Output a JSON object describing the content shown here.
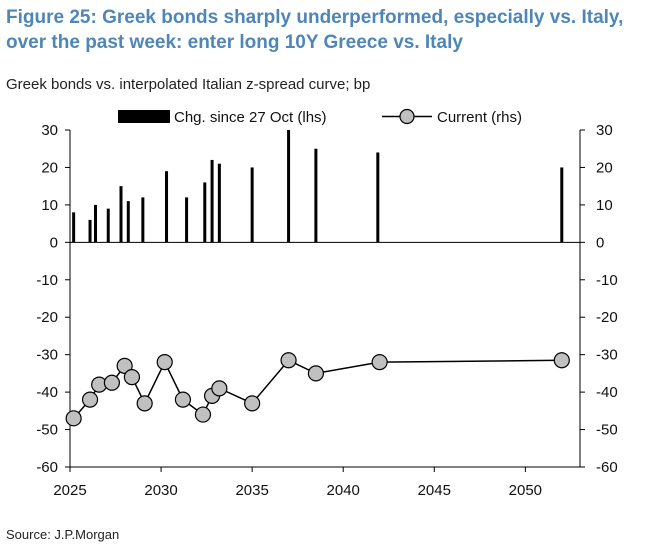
{
  "header": {
    "title": "Figure 25: Greek bonds sharply underperformed, especially vs. Italy, over the past week: enter long 10Y Greece vs. Italy",
    "subtitle": "Greek bonds vs. interpolated Italian z-spread curve; bp"
  },
  "footer": {
    "source": "Source: J.P.Morgan"
  },
  "colors": {
    "title": "#4f86b8",
    "bars": "#000000",
    "marker_fill": "#c0c0c0",
    "line": "#000000"
  },
  "chart_data": {
    "type": "bar+line",
    "title": "",
    "x_ticks": [
      2025,
      2030,
      2035,
      2040,
      2045,
      2050
    ],
    "xlim": [
      2025,
      2053
    ],
    "ylim_left": [
      -60,
      30
    ],
    "ylim_right": [
      -60,
      30
    ],
    "y_ticks": [
      30,
      20,
      10,
      0,
      -10,
      -20,
      -30,
      -40,
      -50,
      -60
    ],
    "legend": {
      "placement": "top",
      "entries": [
        "Chg. since 27 Oct (lhs)",
        "Current (rhs)"
      ]
    },
    "grid": false,
    "bar_series": {
      "name": "Chg. since 27 Oct (lhs)",
      "axis": "left",
      "x": [
        2025.2,
        2026.1,
        2026.4,
        2027.1,
        2027.8,
        2028.2,
        2029.0,
        2030.3,
        2031.4,
        2032.4,
        2032.8,
        2033.2,
        2035.0,
        2037.0,
        2038.5,
        2041.9,
        2052.0
      ],
      "values": [
        8,
        6,
        10,
        9,
        15,
        11,
        12,
        19,
        12,
        16,
        22,
        21,
        20,
        30,
        25,
        24,
        20
      ]
    },
    "line_series": {
      "name": "Current (rhs)",
      "axis": "right",
      "x": [
        2025.2,
        2026.1,
        2026.6,
        2027.3,
        2028.0,
        2028.4,
        2029.1,
        2030.2,
        2031.2,
        2032.3,
        2032.8,
        2033.2,
        2035.0,
        2037.0,
        2038.5,
        2042.0,
        2052.0
      ],
      "values": [
        -47,
        -42,
        -38,
        -37.5,
        -33,
        -36,
        -43,
        -32,
        -42,
        -46,
        -41,
        -39,
        -43,
        -31.5,
        -35,
        -32,
        -31.5
      ]
    }
  }
}
